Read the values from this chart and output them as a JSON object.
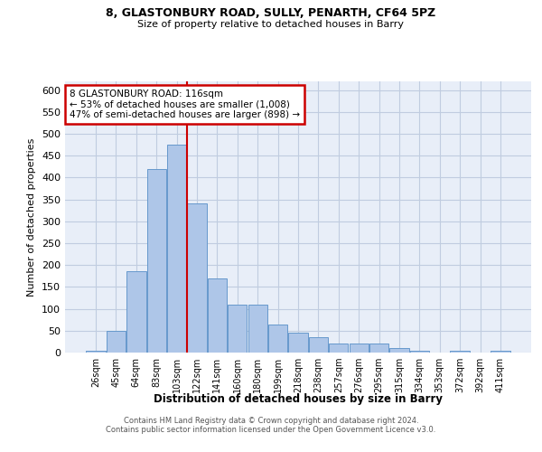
{
  "title1": "8, GLASTONBURY ROAD, SULLY, PENARTH, CF64 5PZ",
  "title2": "Size of property relative to detached houses in Barry",
  "xlabel": "Distribution of detached houses by size in Barry",
  "ylabel": "Number of detached properties",
  "annotation_line1": "8 GLASTONBURY ROAD: 116sqm",
  "annotation_line2": "← 53% of detached houses are smaller (1,008)",
  "annotation_line3": "47% of semi-detached houses are larger (898) →",
  "categories": [
    "26sqm",
    "45sqm",
    "64sqm",
    "83sqm",
    "103sqm",
    "122sqm",
    "141sqm",
    "160sqm",
    "180sqm",
    "199sqm",
    "218sqm",
    "238sqm",
    "257sqm",
    "276sqm",
    "295sqm",
    "315sqm",
    "334sqm",
    "353sqm",
    "372sqm",
    "392sqm",
    "411sqm"
  ],
  "values": [
    5,
    50,
    185,
    420,
    475,
    340,
    170,
    110,
    110,
    65,
    45,
    35,
    20,
    20,
    20,
    10,
    5,
    0,
    5,
    0,
    5
  ],
  "bar_color": "#aec6e8",
  "bar_edge_color": "#6699cc",
  "vline_color": "#cc0000",
  "vline_position": 4.5,
  "annotation_box_color": "#cc0000",
  "background_color": "#e8eef8",
  "grid_color": "#c0cce0",
  "footer_line1": "Contains HM Land Registry data © Crown copyright and database right 2024.",
  "footer_line2": "Contains public sector information licensed under the Open Government Licence v3.0.",
  "ylim": [
    0,
    620
  ],
  "yticks": [
    0,
    50,
    100,
    150,
    200,
    250,
    300,
    350,
    400,
    450,
    500,
    550,
    600
  ]
}
